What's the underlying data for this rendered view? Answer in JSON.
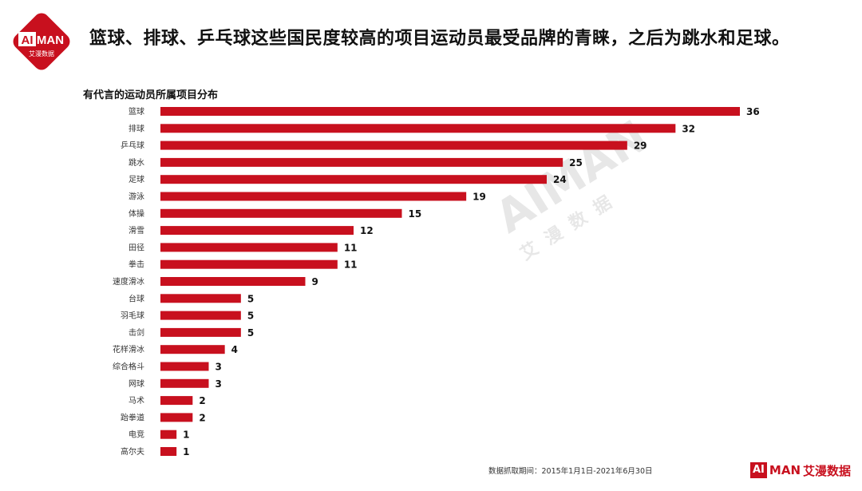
{
  "brand": {
    "logo_ai": "AI",
    "logo_man": "MAN",
    "logo_cn": "艾漫数据",
    "color": "#c8101e"
  },
  "header": {
    "headline": "篮球、排球、乒乓球这些国民度较高的项目运动员最受品牌的青睐，之后为跳水和足球。"
  },
  "chart_data": {
    "type": "bar",
    "orientation": "horizontal",
    "title": "有代言的运动员所属项目分布",
    "categories": [
      "篮球",
      "排球",
      "乒乓球",
      "跳水",
      "足球",
      "游泳",
      "体操",
      "滑雪",
      "田径",
      "拳击",
      "速度滑冰",
      "台球",
      "羽毛球",
      "击剑",
      "花样滑冰",
      "综合格斗",
      "网球",
      "马术",
      "跆拳道",
      "电竞",
      "高尔夫"
    ],
    "values": [
      36,
      32,
      29,
      25,
      24,
      19,
      15,
      12,
      11,
      11,
      9,
      5,
      5,
      5,
      4,
      3,
      3,
      2,
      2,
      1,
      1
    ],
    "bar_color": "#c8101e",
    "xlim": [
      0,
      36
    ],
    "grid": false,
    "legend": false
  },
  "footer": {
    "source": "数据抓取期间：2015年1月1日-2021年6月30日",
    "brand_ai": "AI",
    "brand_man": "MAN",
    "brand_cn": "艾漫数据"
  },
  "watermark": {
    "ai": "AI",
    "man": "MAN",
    "cn": "艾漫数据"
  }
}
